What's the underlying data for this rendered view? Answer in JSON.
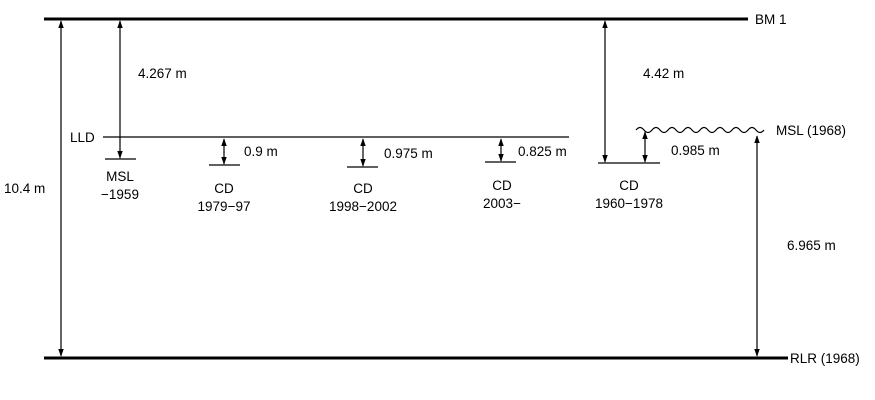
{
  "datums": {
    "bm1": "BM 1",
    "lld": "LLD",
    "msl_1968": "MSL (1968)",
    "rlr_1968": "RLR (1968)"
  },
  "measurements": {
    "total_bm_to_rlr": "10.4 m",
    "bm_to_msl_1959": "4.267 m",
    "bm_to_cd_1960": "4.42 m",
    "lld_to_cd_1979": "0.9 m",
    "lld_to_cd_1998": "0.975 m",
    "lld_to_cd_2003": "0.825 m",
    "msl_to_cd_1960": "0.985 m",
    "msl_to_rlr": "6.965 m"
  },
  "levels": {
    "msl_1959": {
      "line1": "MSL",
      "line2": "−1959"
    },
    "cd_1979": {
      "line1": "CD",
      "line2": "1979−97"
    },
    "cd_1998": {
      "line1": "CD",
      "line2": "1998−2002"
    },
    "cd_2003": {
      "line1": "CD",
      "line2": "2003−"
    },
    "cd_1960": {
      "line1": "CD",
      "line2": "1960−1978"
    }
  }
}
